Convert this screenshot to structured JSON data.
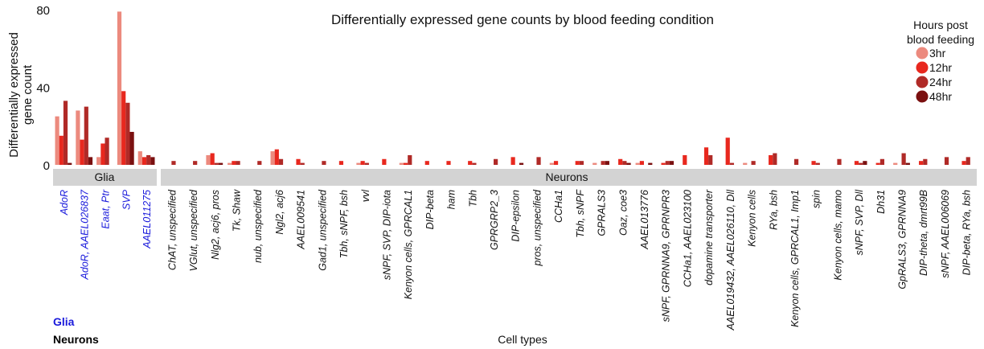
{
  "chart_data": {
    "type": "bar",
    "title": "Differentially expressed gene counts by blood feeding condition",
    "xlabel": "Cell types",
    "ylabel": "Differentially expressed gene count",
    "ylabel_lines": [
      "Differentially expressed",
      "gene count"
    ],
    "ylim": [
      0,
      80
    ],
    "yticks": [
      0,
      40,
      80
    ],
    "grid": false,
    "legend": {
      "title_lines": [
        "Hours post",
        "blood feeding"
      ],
      "placement": "top-right",
      "entries": [
        {
          "name": "3hr",
          "color": "#ec8a7e"
        },
        {
          "name": "12hr",
          "color": "#e8281e"
        },
        {
          "name": "24hr",
          "color": "#b02a27"
        },
        {
          "name": "48hr",
          "color": "#7a1010"
        }
      ]
    },
    "groups": [
      {
        "name": "Glia",
        "color": "#1a1adb"
      },
      {
        "name": "Neurons",
        "color": "#000000"
      }
    ],
    "group_key": [
      "Glia",
      "Neurons"
    ],
    "categories": [
      {
        "label": "AdoR",
        "group": "Glia",
        "values": [
          25,
          15,
          33,
          1
        ]
      },
      {
        "label": "AdoR, AAEL026837",
        "group": "Glia",
        "values": [
          28,
          13,
          30,
          4
        ]
      },
      {
        "label": "Eaat, Ptr",
        "group": "Glia",
        "values": [
          4,
          11,
          14,
          0
        ]
      },
      {
        "label": "SVP",
        "group": "Glia",
        "values": [
          79,
          38,
          32,
          17
        ]
      },
      {
        "label": "AAEL011275",
        "group": "Glia",
        "values": [
          7,
          4,
          5,
          4
        ]
      },
      {
        "label": "ChAT, unspecified",
        "group": "Neurons",
        "values": [
          0,
          0,
          2,
          0
        ]
      },
      {
        "label": "VGlut, unspecified",
        "group": "Neurons",
        "values": [
          0,
          0,
          2,
          0
        ]
      },
      {
        "label": "Nlg2, acj6, pros",
        "group": "Neurons",
        "values": [
          5,
          6,
          1,
          1
        ]
      },
      {
        "label": "Tk, Shaw",
        "group": "Neurons",
        "values": [
          1,
          2,
          2,
          0
        ]
      },
      {
        "label": "nub, unspecified",
        "group": "Neurons",
        "values": [
          0,
          0,
          2,
          0
        ]
      },
      {
        "label": "Ngl2, acj6",
        "group": "Neurons",
        "values": [
          7,
          8,
          3,
          0
        ]
      },
      {
        "label": "AAEL009541",
        "group": "Neurons",
        "values": [
          0,
          3,
          1,
          0
        ]
      },
      {
        "label": "Gad1, unspecified",
        "group": "Neurons",
        "values": [
          0,
          0,
          2,
          0
        ]
      },
      {
        "label": "Tbh, sNPF, bsh",
        "group": "Neurons",
        "values": [
          0,
          2,
          0,
          0
        ]
      },
      {
        "label": "vvl",
        "group": "Neurons",
        "values": [
          1,
          2,
          1,
          0
        ]
      },
      {
        "label": "sNPF, SVP, DIP-iota",
        "group": "Neurons",
        "values": [
          0,
          3,
          0,
          0
        ]
      },
      {
        "label": "Kenyon cells, GPRCAL1",
        "group": "Neurons",
        "values": [
          1,
          1,
          5,
          0
        ]
      },
      {
        "label": "DIP-beta",
        "group": "Neurons",
        "values": [
          0,
          2,
          0,
          0
        ]
      },
      {
        "label": "ham",
        "group": "Neurons",
        "values": [
          0,
          2,
          0,
          0
        ]
      },
      {
        "label": "Tbh",
        "group": "Neurons",
        "values": [
          0,
          2,
          1,
          0
        ]
      },
      {
        "label": "GPRGRP2_3",
        "group": "Neurons",
        "values": [
          0,
          0,
          3,
          0
        ]
      },
      {
        "label": "DIP-epsilon",
        "group": "Neurons",
        "values": [
          0,
          4,
          0,
          1
        ]
      },
      {
        "label": "pros, unspecified",
        "group": "Neurons",
        "values": [
          0,
          0,
          4,
          0
        ]
      },
      {
        "label": "CCHa1",
        "group": "Neurons",
        "values": [
          1,
          2,
          0,
          0
        ]
      },
      {
        "label": "Tbh, sNPF",
        "group": "Neurons",
        "values": [
          0,
          2,
          2,
          0
        ]
      },
      {
        "label": "GPRALS3",
        "group": "Neurons",
        "values": [
          1,
          0,
          2,
          2
        ]
      },
      {
        "label": "Oaz, coe3",
        "group": "Neurons",
        "values": [
          0,
          3,
          2,
          1
        ]
      },
      {
        "label": "AAEL013776",
        "group": "Neurons",
        "values": [
          1,
          2,
          0,
          1
        ]
      },
      {
        "label": "sNPF, GPRNNA9, GPRNPR3",
        "group": "Neurons",
        "values": [
          0,
          1,
          2,
          2
        ]
      },
      {
        "label": "CCHa1, AAEL023100",
        "group": "Neurons",
        "values": [
          0,
          5,
          0,
          0
        ]
      },
      {
        "label": "dopamine transporter",
        "group": "Neurons",
        "values": [
          0,
          9,
          5,
          0
        ]
      },
      {
        "label": "AAEL019432, AAEL026110, Dll",
        "group": "Neurons",
        "values": [
          0,
          14,
          1,
          0
        ]
      },
      {
        "label": "Kenyon cells",
        "group": "Neurons",
        "values": [
          1,
          0,
          2,
          0
        ]
      },
      {
        "label": "RYa, bsh",
        "group": "Neurons",
        "values": [
          0,
          5,
          6,
          0
        ]
      },
      {
        "label": "Kenyon cells, GPRCAL1, Imp1",
        "group": "Neurons",
        "values": [
          0,
          0,
          3,
          0
        ]
      },
      {
        "label": "spin",
        "group": "Neurons",
        "values": [
          0,
          2,
          1,
          0
        ]
      },
      {
        "label": "Kenyon cells, mamo",
        "group": "Neurons",
        "values": [
          0,
          0,
          3,
          0
        ]
      },
      {
        "label": "sNPF, SVP, Dll",
        "group": "Neurons",
        "values": [
          0,
          2,
          1,
          2
        ]
      },
      {
        "label": "Dh31",
        "group": "Neurons",
        "values": [
          0,
          1,
          3,
          0
        ]
      },
      {
        "label": "GpRALS3, GPRNNA9",
        "group": "Neurons",
        "values": [
          1,
          0,
          6,
          1
        ]
      },
      {
        "label": "DIP-theta, dmrt99B",
        "group": "Neurons",
        "values": [
          0,
          2,
          3,
          0
        ]
      },
      {
        "label": "sNPF, AAEL006069",
        "group": "Neurons",
        "values": [
          0,
          0,
          4,
          0
        ]
      },
      {
        "label": "DIP-beta, RYa, bsh",
        "group": "Neurons",
        "values": [
          0,
          2,
          4,
          0
        ]
      }
    ],
    "series": [
      {
        "name": "3hr",
        "values": [
          25,
          28,
          4,
          79,
          7,
          0,
          0,
          5,
          1,
          0,
          7,
          0,
          0,
          0,
          1,
          0,
          1,
          0,
          0,
          0,
          0,
          0,
          0,
          1,
          0,
          1,
          0,
          1,
          0,
          0,
          0,
          0,
          1,
          0,
          0,
          0,
          0,
          0,
          0,
          1,
          0,
          0,
          0
        ]
      },
      {
        "name": "12hr",
        "values": [
          15,
          13,
          11,
          38,
          4,
          0,
          0,
          6,
          2,
          0,
          8,
          3,
          0,
          2,
          2,
          3,
          1,
          2,
          2,
          2,
          0,
          4,
          0,
          2,
          2,
          0,
          3,
          2,
          1,
          5,
          9,
          14,
          0,
          5,
          0,
          2,
          0,
          2,
          1,
          0,
          2,
          0,
          2
        ]
      },
      {
        "name": "24hr",
        "values": [
          33,
          30,
          14,
          32,
          5,
          2,
          2,
          1,
          2,
          2,
          3,
          1,
          2,
          0,
          1,
          0,
          5,
          0,
          0,
          1,
          3,
          0,
          4,
          0,
          2,
          2,
          2,
          0,
          2,
          0,
          5,
          1,
          2,
          6,
          3,
          1,
          3,
          1,
          3,
          6,
          3,
          4,
          4
        ]
      },
      {
        "name": "48hr",
        "values": [
          1,
          4,
          0,
          17,
          4,
          0,
          0,
          1,
          0,
          0,
          0,
          0,
          0,
          0,
          0,
          0,
          0,
          0,
          0,
          0,
          0,
          1,
          0,
          0,
          0,
          2,
          1,
          1,
          2,
          0,
          0,
          0,
          0,
          0,
          0,
          0,
          0,
          2,
          0,
          1,
          0,
          0,
          0
        ]
      }
    ]
  }
}
